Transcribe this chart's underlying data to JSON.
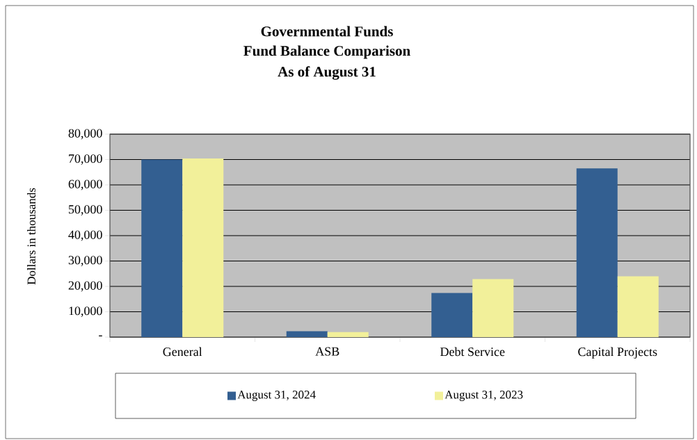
{
  "chart_data": {
    "type": "bar",
    "title": "Governmental Funds",
    "subtitle": "Fund Balance Comparison",
    "annotations": [
      "As of August 31"
    ],
    "ylabel": "Dollars in thousands",
    "categories": [
      "General",
      "ASB",
      "Debt Service",
      "Capital Projects"
    ],
    "series": [
      {
        "name": "August 31, 2024",
        "color": "#335f91",
        "values": [
          70000,
          2300,
          17400,
          66500
        ]
      },
      {
        "name": "August 31, 2023",
        "color": "#f2f09a",
        "values": [
          70400,
          2000,
          22900,
          24000
        ]
      }
    ],
    "ylim": [
      0,
      80000
    ],
    "yticks": [
      {
        "value": 0,
        "label": "-"
      },
      {
        "value": 10000,
        "label": "10,000"
      },
      {
        "value": 20000,
        "label": "20,000"
      },
      {
        "value": 30000,
        "label": "30,000"
      },
      {
        "value": 40000,
        "label": "40,000"
      },
      {
        "value": 50000,
        "label": "50,000"
      },
      {
        "value": 60000,
        "label": "60,000"
      },
      {
        "value": 70000,
        "label": "70,000"
      },
      {
        "value": 80000,
        "label": "80,000"
      }
    ],
    "grid": "y",
    "legend": "bottom"
  }
}
